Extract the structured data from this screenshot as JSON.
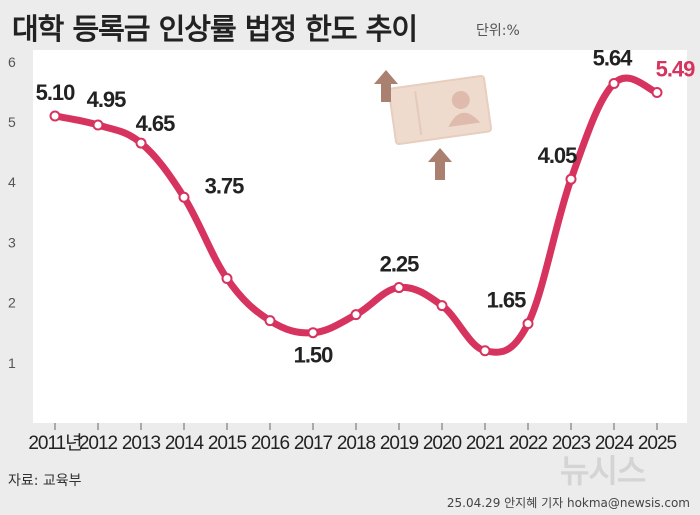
{
  "header": {
    "title": "대학 등록금 인상률 법정 한도 추이",
    "unit": "단위:%"
  },
  "footer": {
    "source": "자료: 교육부",
    "credit": "25.04.29 안지혜 기자 hokma@newsis.com",
    "logo": "뉴시스"
  },
  "colors": {
    "line": "#d6335f",
    "marker_fill": "#ffffff",
    "plot_bg": "#ffffff",
    "page_bg": "#ececec",
    "last_label": "#d6335f"
  },
  "chart_data": {
    "type": "line",
    "title": "대학 등록금 인상률 법정 한도 추이",
    "x": [
      "2011년",
      "2012",
      "2013",
      "2014",
      "2015",
      "2016",
      "2017",
      "2018",
      "2019",
      "2020",
      "2021",
      "2022",
      "2023",
      "2024",
      "2025"
    ],
    "values": [
      5.1,
      4.95,
      4.65,
      3.75,
      2.4,
      1.7,
      1.5,
      1.8,
      2.25,
      1.95,
      1.2,
      1.65,
      4.05,
      5.64,
      5.49
    ],
    "data_labels": {
      "0": "5.10",
      "1": "4.95",
      "2": "4.65",
      "3": "3.75",
      "6": "1.50",
      "8": "2.25",
      "11": "1.65",
      "12": "4.05",
      "13": "5.64",
      "14": "5.49"
    },
    "yticks": [
      1,
      2,
      3,
      4,
      5,
      6
    ],
    "ylim": [
      0,
      6
    ],
    "grid": false,
    "legend": "none"
  }
}
